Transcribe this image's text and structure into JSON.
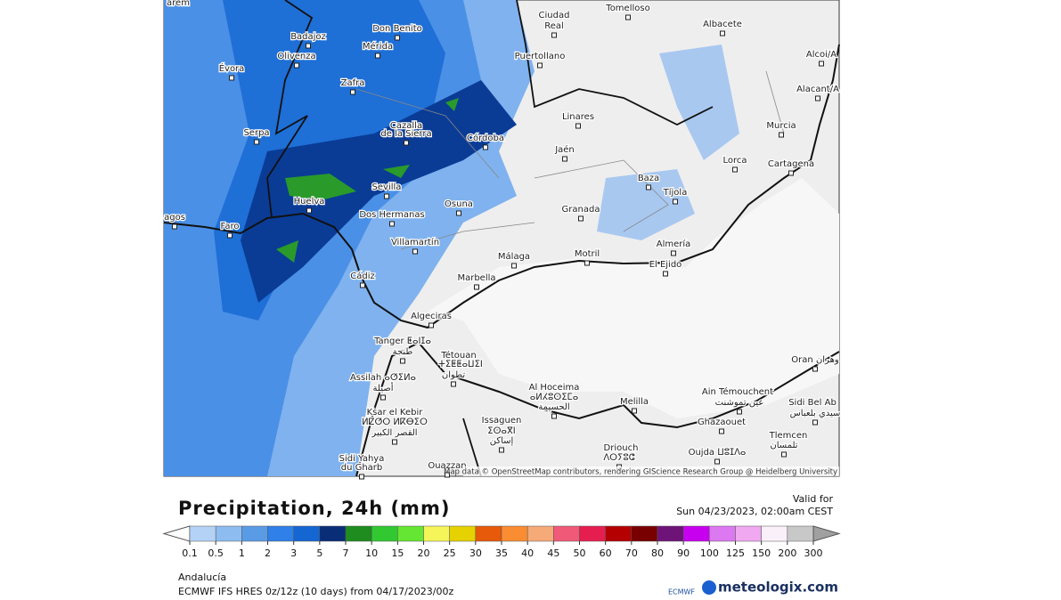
{
  "map": {
    "cities": [
      "Badajoz",
      "Don Benito",
      "Ciudad",
      "Real",
      "Tomelloso",
      "Albacete",
      "Olivenza",
      "Mérida",
      "Puertollano",
      "Évora",
      "Zafra",
      "Alcoi/A",
      "Alacant/A",
      "Linares",
      "Serpa",
      "Cazalla",
      "de la Sierra",
      "Córdoba",
      "Murcia",
      "Jaén",
      "Lorca",
      "Cartagena",
      "Baza",
      "Tíjola",
      "Sevilla",
      "Huelva",
      "Osuna",
      "Dos Hermanas",
      "Granada",
      "Faro",
      "Almería",
      "Villamartín",
      "Málaga",
      "Motril",
      "El Ejido",
      "Cádiz",
      "Marbella",
      "Algeciras",
      "Tanger ⵟⴰⵏⵊⴰ",
      "طنجة",
      "Tétouan",
      "ⵜⵉⵟⵟⴰⵡⵉⵏ",
      "تطوان",
      "Assilah ⴰⵚⵉⵍⴰ",
      "أصيلة",
      "Oran وهران",
      "Al Hoceima",
      "ⴰⵍⵃⵓⵙⵉⵎⴰ",
      "الحسيمة",
      "Melilla",
      "Ain Témouchent",
      "عين تموشنت",
      "Sidi Bel Ab",
      "سيدي بلعباس",
      "Ksar el Kebir",
      "ⵍⵇⵚⵔ ⵍⴽⴱⵉⵔ",
      "القصر الكبير",
      "Ghazaouet",
      "Issaguen",
      "ⵉⵙⴰⴳⵏ",
      "إساكن",
      "Tlemcen",
      "تلمسان",
      "Driouch",
      "ⴷⵔⵢⵓⵛ",
      "Oujda ⵡⵓⵊⴷⴰ",
      "Sidi Yahya",
      "du Gharb",
      "Ouazzan",
      "agos",
      "arem"
    ],
    "attribution": "Map data © OpenStreetMap contributors, rendering GIScience Research Group @ Heidelberg University"
  },
  "header": {
    "title": "Precipitation, 24h (mm)",
    "valid_label": "Valid for",
    "valid_time": "Sun 04/23/2023, 02:00am CEST"
  },
  "legend": {
    "ticks": [
      0.1,
      0.5,
      1,
      2,
      3,
      5,
      7,
      10,
      15,
      20,
      25,
      30,
      35,
      40,
      45,
      50,
      60,
      70,
      80,
      90,
      100,
      125,
      150,
      200,
      300
    ],
    "colors": [
      "#b4d2f5",
      "#8cbcf0",
      "#5a9be6",
      "#2f80e8",
      "#1466d2",
      "#0a2d78",
      "#1e8c1e",
      "#32c832",
      "#64e632",
      "#f5f55a",
      "#e6d200",
      "#e65a0a",
      "#fa8c32",
      "#f5aa78",
      "#f05a78",
      "#e61e50",
      "#b40000",
      "#780000",
      "#6e1478",
      "#c800f0",
      "#dc78f0",
      "#f0a8f0",
      "#faf0fa",
      "#c8c8c8"
    ]
  },
  "footer": {
    "region": "Andalucía",
    "model": "ECMWF IFS HRES 0z/12z (10 days) from 04/17/2023/00z",
    "ecmwf": "ECMWF",
    "brand": "meteologix.com"
  }
}
